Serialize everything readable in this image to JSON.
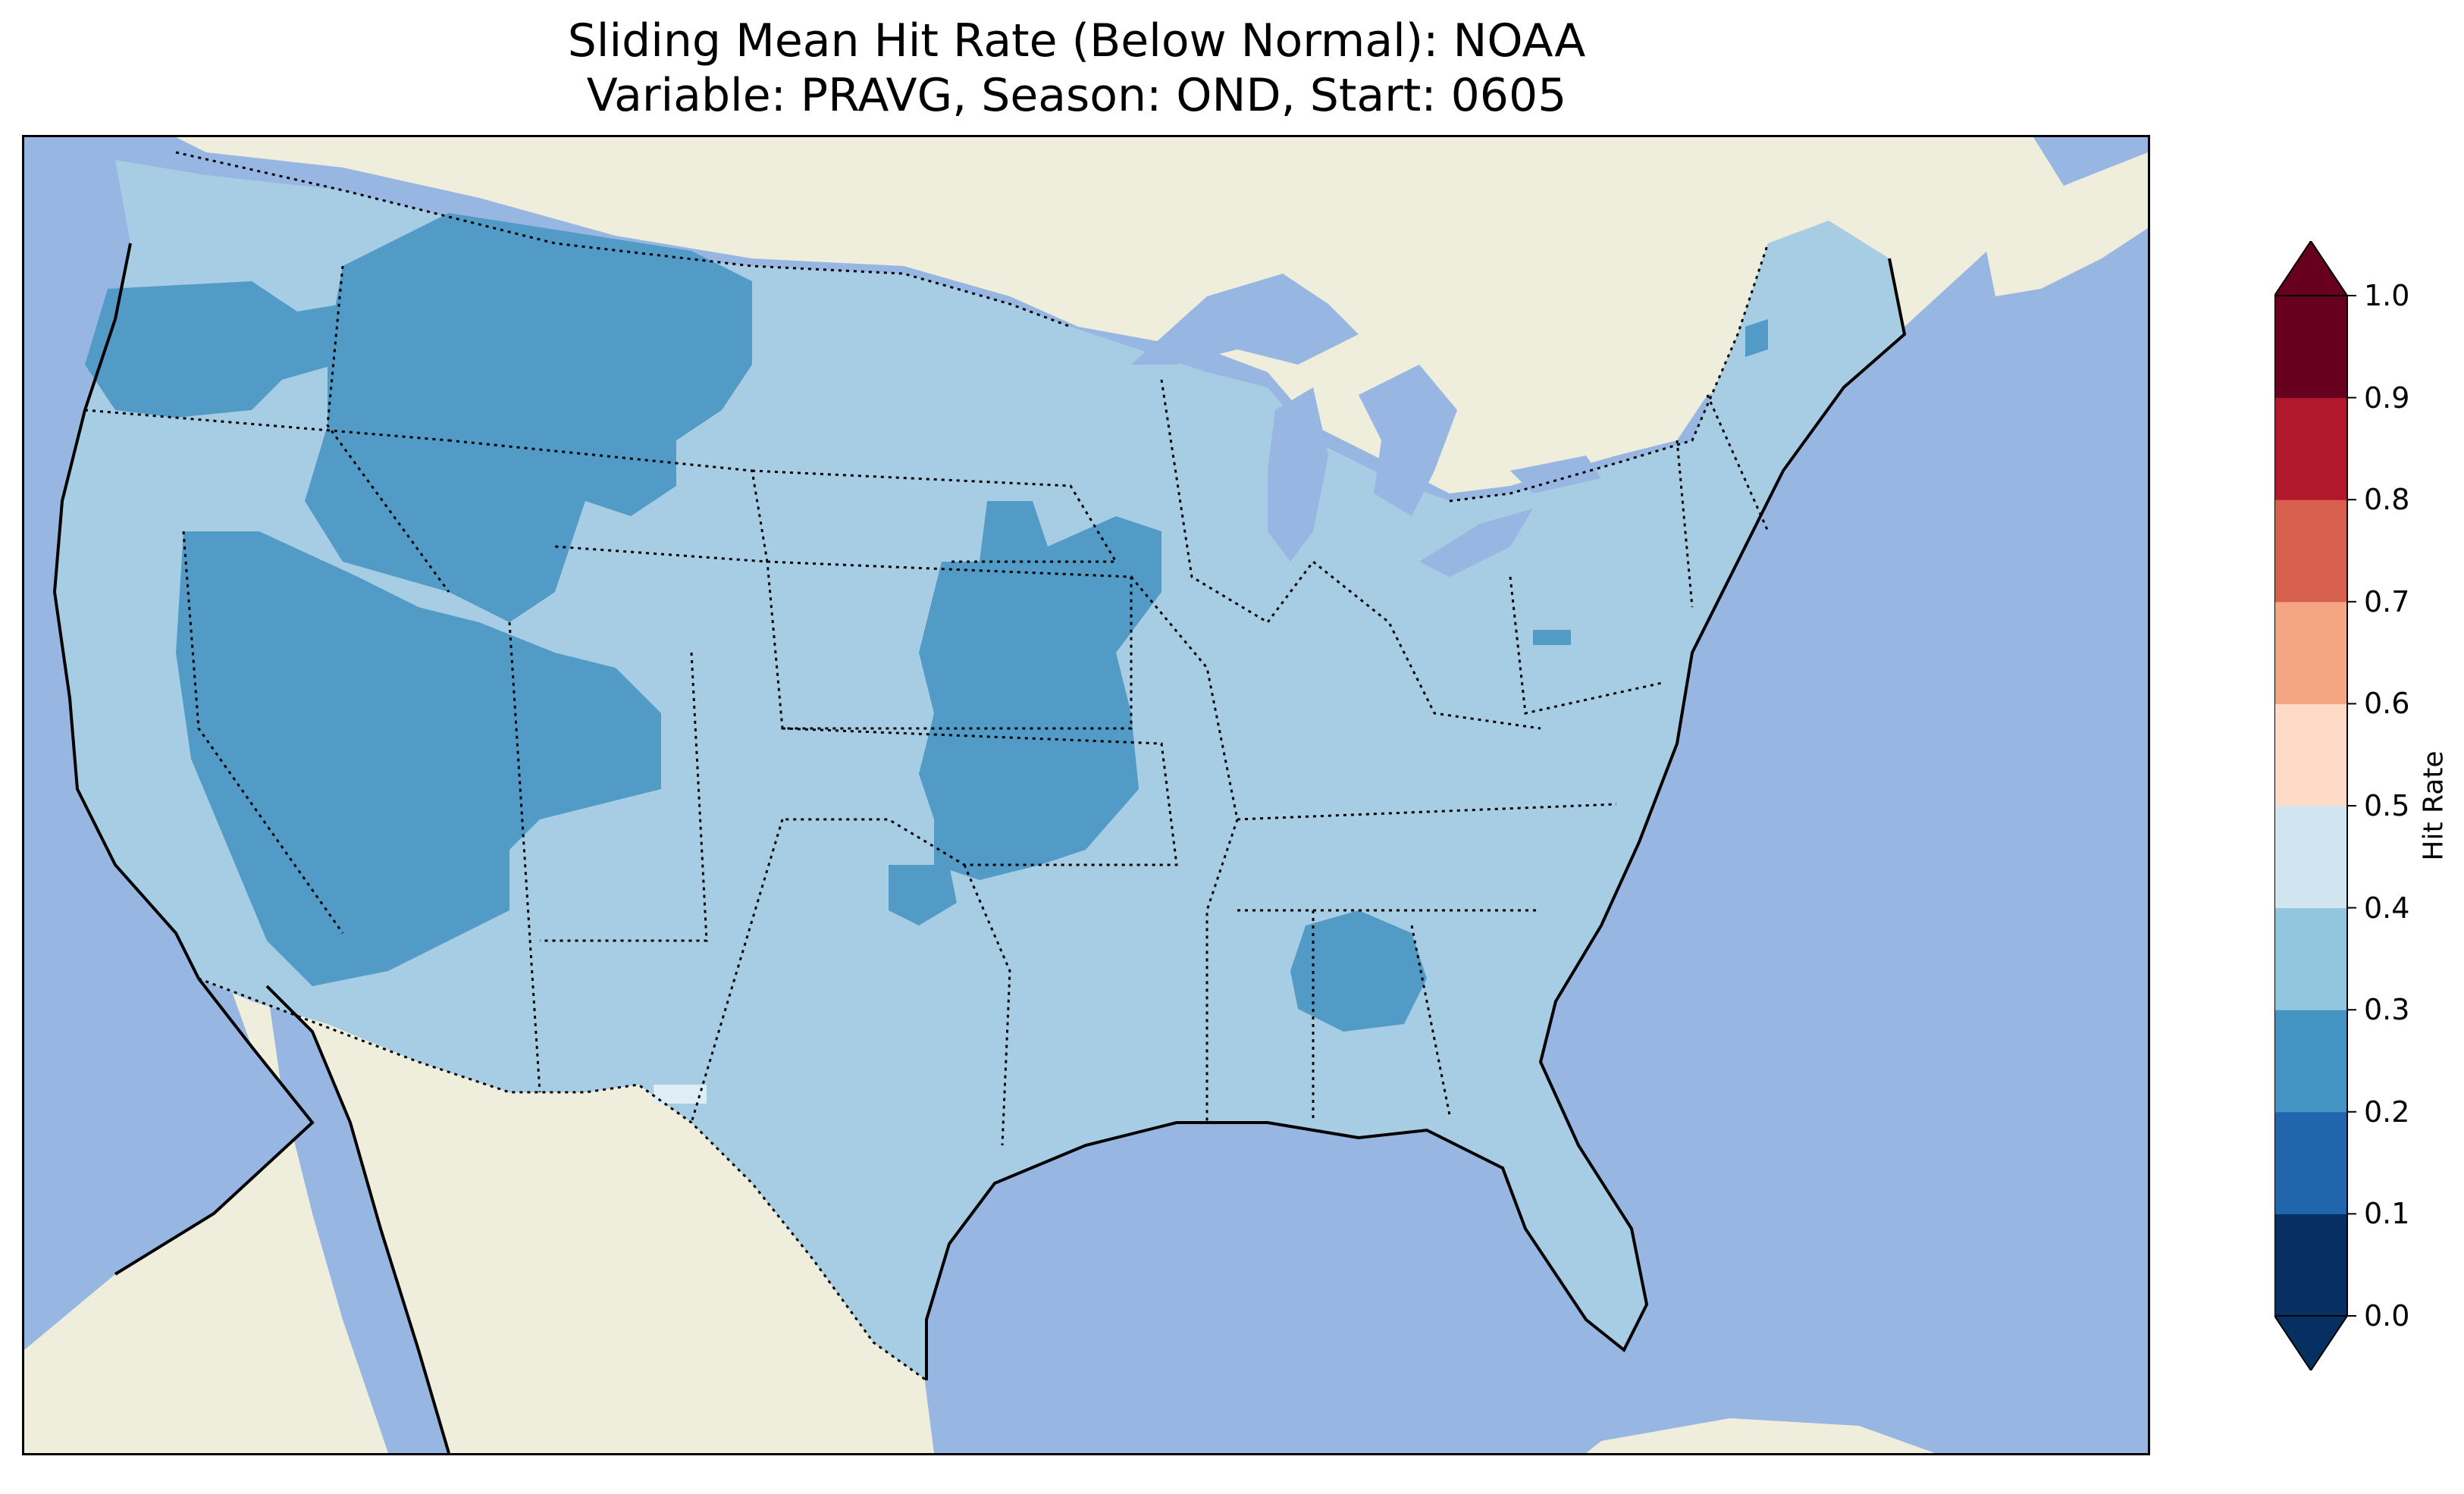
{
  "title": {
    "line1": "Sliding Mean Hit Rate (Below Normal): NOAA",
    "line2": "Variable: PRAVG, Season: OND, Start: 0605"
  },
  "map": {
    "region": "Contiguous United States",
    "ocean_color": "#97b6e1",
    "land_color": "#efeddb",
    "lake_color": "#97b6e1",
    "dominant_field_class": "0.3-0.4",
    "areas_0_2_to_0_3": [
      "Washington",
      "Idaho",
      "Montana",
      "Oregon",
      "Nevada",
      "Utah",
      "Arizona",
      "Wyoming",
      "Nebraska",
      "Iowa",
      "Kansas",
      "Missouri",
      "Oklahoma",
      "Alabama",
      "Maine"
    ],
    "areas_0_4_to_0_5": [
      "West Texas"
    ]
  },
  "colorbar": {
    "label": "Hit Rate",
    "ticks": [
      "0.0",
      "0.1",
      "0.2",
      "0.3",
      "0.4",
      "0.5",
      "0.6",
      "0.7",
      "0.8",
      "0.9",
      "1.0"
    ],
    "colors": [
      "#053061",
      "#2166ac",
      "#4393c3",
      "#92c5de",
      "#d1e5f0",
      "#fddbc7",
      "#f4a582",
      "#d6604d",
      "#b2182b",
      "#67001f"
    ],
    "extend": "both"
  },
  "chart_data": {
    "type": "heatmap",
    "title": "Sliding Mean Hit Rate (Below Normal): NOAA\nVariable: PRAVG, Season: OND, Start: 0605",
    "colorbar_label": "Hit Rate",
    "levels": [
      0.0,
      0.1,
      0.2,
      0.3,
      0.4,
      0.5,
      0.6,
      0.7,
      0.8,
      0.9,
      1.0
    ]
  }
}
